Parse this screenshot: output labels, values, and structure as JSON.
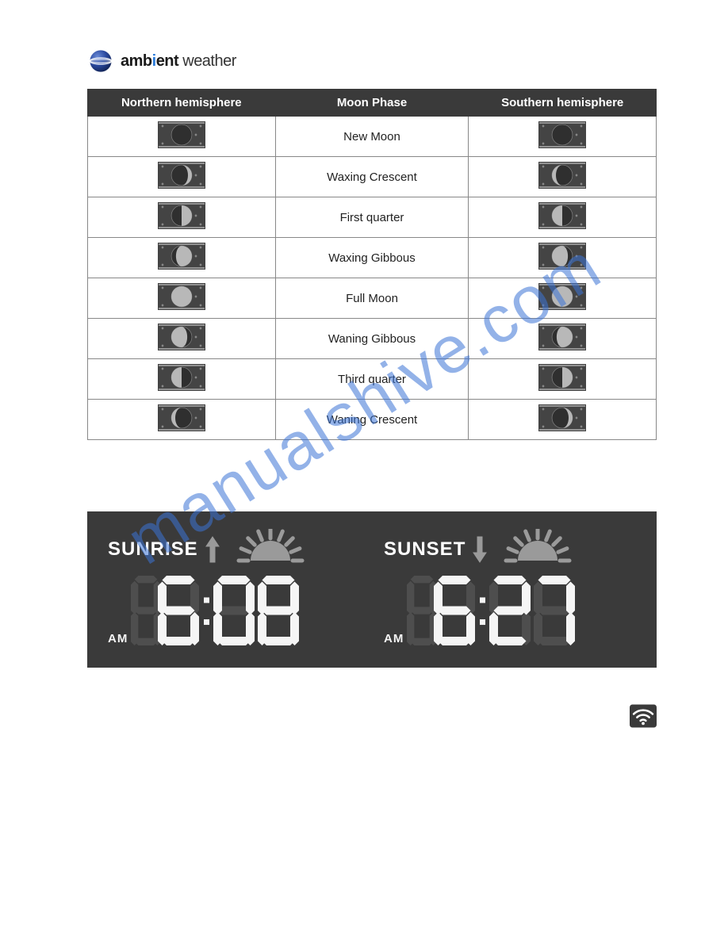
{
  "brand": {
    "bold_part1": "amb",
    "i": "i",
    "bold_part2": "ent",
    "thin": " weather"
  },
  "watermark_text": "manualshive.com",
  "table": {
    "headers": [
      "Northern hemisphere",
      "Moon Phase",
      "Southern hemisphere"
    ],
    "rows": [
      {
        "label": "New Moon",
        "north": "new",
        "south": "new"
      },
      {
        "label": "Waxing Crescent",
        "north": "wax_c",
        "south": "wan_c"
      },
      {
        "label": "First quarter",
        "north": "first_q",
        "south": "third_q"
      },
      {
        "label": "Waxing Gibbous",
        "north": "wax_g",
        "south": "wan_g"
      },
      {
        "label": "Full Moon",
        "north": "full",
        "south": "full"
      },
      {
        "label": "Waning Gibbous",
        "north": "wan_g",
        "south": "wax_g"
      },
      {
        "label": "Third quarter",
        "north": "third_q",
        "south": "first_q"
      },
      {
        "label": "Waning Crescent",
        "north": "wan_c",
        "south": "wax_c"
      }
    ],
    "swatch": {
      "w": 60,
      "h": 34,
      "bg": "#444444",
      "dark": "#2f2f2f",
      "light": "#b8b8b8",
      "line": "#c7c7c7"
    }
  },
  "panel": {
    "bg": "#3a3a3a",
    "inactive_seg": "#4e4e4e",
    "active_seg": "#f5f5f5",
    "arrow_color": "#9a9a9a",
    "sun_fill": "#9a9a9a",
    "left": {
      "label": "SUNRISE",
      "arrow": "up",
      "ampm": "AM",
      "h": "6",
      "m1": "0",
      "m2": "8"
    },
    "right": {
      "label": "SUNSET",
      "arrow": "down",
      "ampm": "AM",
      "h": "6",
      "m1": "2",
      "m2": "7"
    },
    "digit": {
      "w": 56,
      "h": 92,
      "seg": 11,
      "gap": 2
    },
    "ampm_digit": {
      "w": 20,
      "h": 26
    }
  }
}
